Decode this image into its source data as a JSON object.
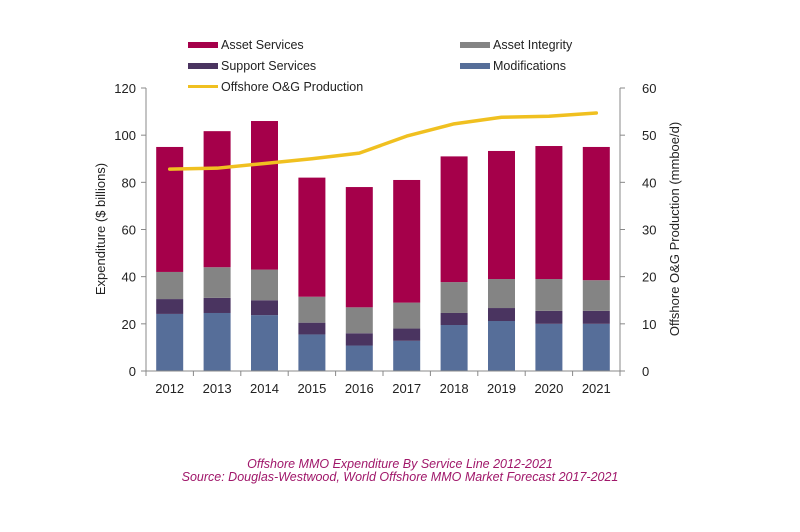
{
  "chart_data": {
    "type": "bar",
    "stacked": true,
    "categories": [
      "2012",
      "2013",
      "2014",
      "2015",
      "2016",
      "2017",
      "2018",
      "2019",
      "2020",
      "2021"
    ],
    "series": [
      {
        "name": "Modifications",
        "color": "#566e99",
        "values": [
          24.2,
          24.6,
          23.7,
          15.5,
          10.8,
          12.8,
          19.5,
          21.2,
          20.0,
          20.0
        ]
      },
      {
        "name": "Support Services",
        "color": "#4a3460",
        "values": [
          6.3,
          6.4,
          6.3,
          5.0,
          5.2,
          5.2,
          5.1,
          5.5,
          5.5,
          5.5
        ]
      },
      {
        "name": "Asset Integrity",
        "color": "#848484",
        "values": [
          11.5,
          13.0,
          13.0,
          11.0,
          11.0,
          11.0,
          13.1,
          12.3,
          13.5,
          13.0
        ]
      },
      {
        "name": "Asset Services",
        "color": "#a5004a",
        "values": [
          53.0,
          57.7,
          63.0,
          50.5,
          51.0,
          52.0,
          53.3,
          54.3,
          56.4,
          56.5
        ]
      }
    ],
    "line_series": {
      "name": "Offshore O&G Production",
      "color": "#f0c020",
      "axis": "right",
      "values": [
        42.8,
        43.0,
        44.0,
        45.0,
        46.2,
        49.8,
        52.4,
        53.8,
        54.0,
        54.7
      ]
    },
    "ylabel": "Expenditure ($ billions)",
    "ylim": [
      0,
      120
    ],
    "yticks": [
      "0",
      "20",
      "40",
      "60",
      "80",
      "100",
      "120"
    ],
    "y2label": "Offshore O&G Production (mmboe/d)",
    "y2lim": [
      0,
      60
    ],
    "y2ticks": [
      "0",
      "10",
      "20",
      "30",
      "40",
      "50",
      "60"
    ],
    "grid": false,
    "legend": {
      "placement": "top",
      "entries": [
        {
          "label": "Asset Services",
          "color": "#a5004a",
          "kind": "bar"
        },
        {
          "label": "Asset Integrity",
          "color": "#848484",
          "kind": "bar"
        },
        {
          "label": "Support Services",
          "color": "#4a3460",
          "kind": "bar"
        },
        {
          "label": "Modifications",
          "color": "#566e99",
          "kind": "bar"
        },
        {
          "label": "Offshore O&G Production",
          "color": "#f0c020",
          "kind": "line"
        }
      ]
    },
    "title": "Offshore MMO Expenditure By Service Line 2012-2021",
    "source": "Source: Douglas-Westwood, World Offshore MMO Market Forecast 2017-2021"
  }
}
